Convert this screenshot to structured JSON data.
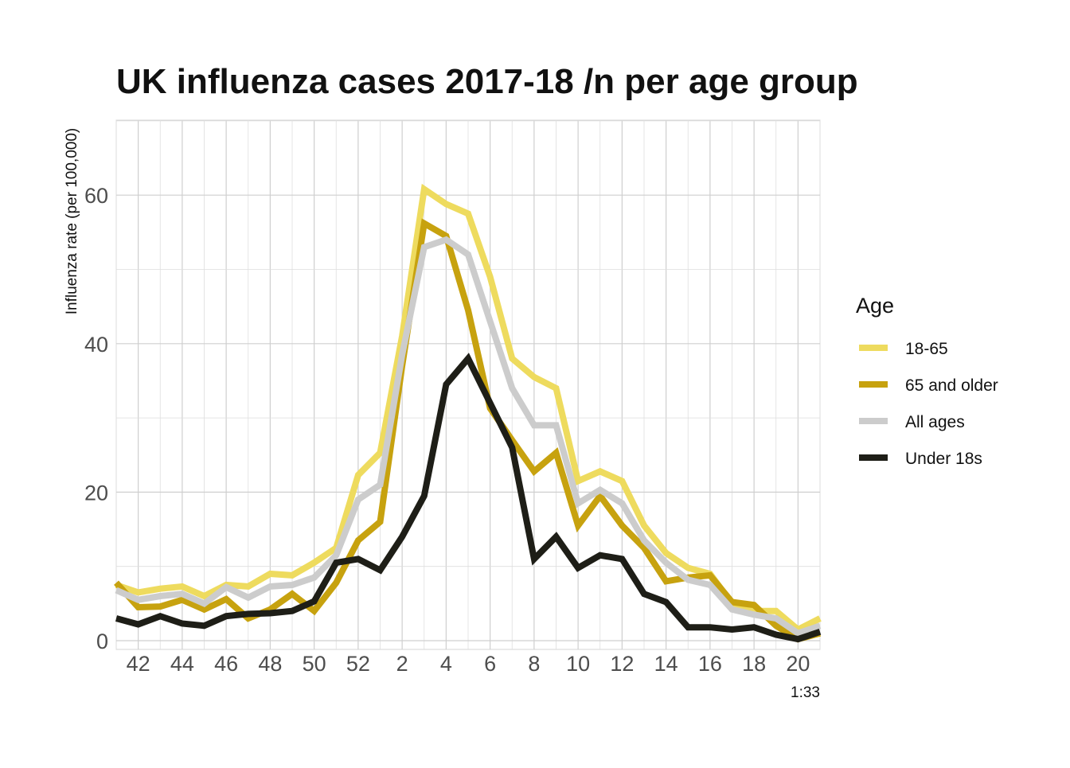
{
  "chart_data": {
    "type": "line",
    "title": "UK influenza cases 2017-18 /n per age group",
    "xlabel": "",
    "ylabel": "Influenza rate (per 100,000)",
    "caption": "1:33",
    "x": [
      41,
      42,
      43,
      44,
      45,
      46,
      47,
      48,
      49,
      50,
      51,
      52,
      53,
      54,
      55,
      56,
      57,
      58,
      59,
      60,
      61,
      62,
      63,
      64,
      65,
      66,
      67,
      68,
      69,
      70,
      71,
      72,
      73
    ],
    "x_tick_values": [
      42,
      44,
      46,
      48,
      50,
      52,
      54,
      56,
      58,
      60,
      62,
      64,
      66,
      68,
      70,
      72
    ],
    "x_tick_labels": [
      "42",
      "44",
      "46",
      "48",
      "50",
      "52",
      "2",
      "4",
      "6",
      "8",
      "10",
      "12",
      "14",
      "16",
      "18",
      "20"
    ],
    "xlim": [
      41,
      73
    ],
    "ylim": [
      0,
      70
    ],
    "y_tick_values": [
      0,
      20,
      40,
      60
    ],
    "y_tick_labels": [
      "0",
      "20",
      "40",
      "60"
    ],
    "grid": true,
    "legend": {
      "title": "Age",
      "position": "right"
    },
    "series": [
      {
        "name": "18-65",
        "color": "#eedb5e",
        "values": [
          7.5,
          6.5,
          7,
          7.3,
          6,
          7.5,
          7.3,
          9,
          8.8,
          10.5,
          12.5,
          22.3,
          25.3,
          41,
          60.8,
          58.8,
          57.5,
          49,
          38,
          35.5,
          34,
          21.5,
          22.8,
          21.5,
          15.5,
          11.8,
          9.8,
          9,
          5,
          4,
          4,
          1.5,
          3
        ]
      },
      {
        "name": "65 and older",
        "color": "#c7a20f",
        "values": [
          7.8,
          4.5,
          4.6,
          5.5,
          4.2,
          5.6,
          3,
          4.2,
          6.3,
          4,
          7.8,
          13.5,
          16,
          37,
          56.2,
          54.5,
          44.5,
          31.3,
          27,
          22.8,
          25.3,
          15.5,
          19.5,
          15.5,
          12.5,
          8,
          8.5,
          8.8,
          5.2,
          4.8,
          2,
          0.2,
          1
        ]
      },
      {
        "name": "All ages",
        "color": "#cccccc",
        "values": [
          6.8,
          5.5,
          6,
          6.3,
          5,
          7.2,
          5.8,
          7.3,
          7.5,
          8.5,
          11.5,
          19,
          21,
          38.5,
          53,
          54,
          52,
          43,
          34,
          29,
          29,
          18.5,
          20.3,
          18.5,
          13.5,
          10.5,
          8.2,
          7.5,
          4.2,
          3.5,
          3,
          1,
          2
        ]
      },
      {
        "name": "Under 18s",
        "color": "#1e1e17",
        "values": [
          3,
          2.2,
          3.3,
          2.3,
          2,
          3.3,
          3.6,
          3.7,
          4,
          5.3,
          10.5,
          11,
          9.5,
          14,
          19.5,
          34.5,
          38,
          32,
          26,
          11,
          14,
          9.8,
          11.5,
          11,
          6.3,
          5.2,
          1.8,
          1.8,
          1.5,
          1.8,
          0.8,
          0.2,
          1.2
        ]
      }
    ]
  }
}
